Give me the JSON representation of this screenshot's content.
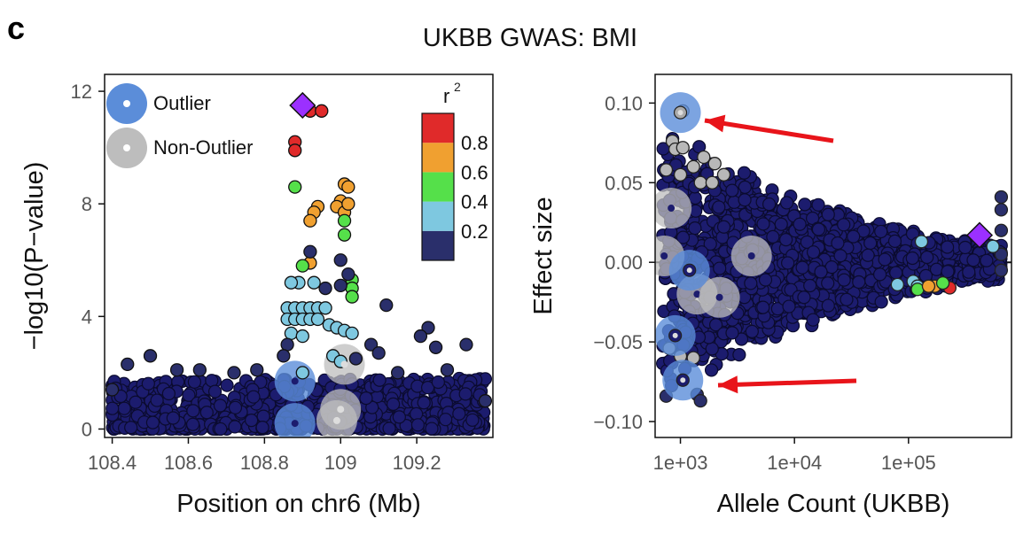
{
  "panel_letter": "c",
  "title": "UKBB GWAS: BMI",
  "colors": {
    "dark_navy": "#1c1c6e",
    "outlier_blue": "#5b8dd9",
    "non_outlier_gray": "#bdbdbd",
    "lead_snp_purple": "#9b30ff",
    "arrow_red": "#e8141a",
    "r2_bins": [
      "#2a2f6b",
      "#7ec8e0",
      "#55e04a",
      "#f0a030",
      "#e02a2a"
    ]
  },
  "legend": {
    "outlier_label": "Outlier",
    "non_outlier_label": "Non-Outlier",
    "r2_title": "r",
    "r2_title_superscript": "2",
    "r2_ticks": [
      "0.2",
      "0.4",
      "0.6",
      "0.8"
    ]
  },
  "chart_data": [
    {
      "type": "scatter",
      "name": "locus-plot",
      "xlabel": "Position on chr6 (Mb)",
      "ylabel": "−log10(P−value)",
      "xlim": [
        108.38,
        109.4
      ],
      "ylim": [
        -0.3,
        12.6
      ],
      "xticks": [
        108.4,
        108.6,
        108.8,
        109,
        109.2
      ],
      "xtick_labels": [
        "108.4",
        "108.6",
        "108.8",
        "109",
        "109.2"
      ],
      "yticks": [
        0,
        4,
        8,
        12
      ],
      "ytick_labels": [
        "0",
        "4",
        "8",
        "12"
      ],
      "lead_snp": {
        "x": 108.9,
        "y": 11.5,
        "r2_bin": 4
      },
      "points": [
        {
          "x": 108.92,
          "y": 11.3,
          "r2_bin": 4
        },
        {
          "x": 108.95,
          "y": 11.3,
          "r2_bin": 4
        },
        {
          "x": 108.88,
          "y": 10.2,
          "r2_bin": 4
        },
        {
          "x": 108.88,
          "y": 9.9,
          "r2_bin": 4
        },
        {
          "x": 109.01,
          "y": 8.7,
          "r2_bin": 3
        },
        {
          "x": 109.02,
          "y": 8.6,
          "r2_bin": 3
        },
        {
          "x": 109.0,
          "y": 8.1,
          "r2_bin": 3
        },
        {
          "x": 108.99,
          "y": 7.9,
          "r2_bin": 3
        },
        {
          "x": 109.01,
          "y": 7.7,
          "r2_bin": 3
        },
        {
          "x": 108.94,
          "y": 7.9,
          "r2_bin": 3
        },
        {
          "x": 108.93,
          "y": 7.7,
          "r2_bin": 3
        },
        {
          "x": 108.92,
          "y": 7.4,
          "r2_bin": 3
        },
        {
          "x": 109.02,
          "y": 8.0,
          "r2_bin": 3
        },
        {
          "x": 108.88,
          "y": 8.6,
          "r2_bin": 2
        },
        {
          "x": 109.01,
          "y": 7.4,
          "r2_bin": 2
        },
        {
          "x": 109.01,
          "y": 6.9,
          "r2_bin": 2
        },
        {
          "x": 108.92,
          "y": 5.9,
          "r2_bin": 3
        },
        {
          "x": 108.9,
          "y": 5.8,
          "r2_bin": 2
        },
        {
          "x": 109.03,
          "y": 5.3,
          "r2_bin": 2
        },
        {
          "x": 109.03,
          "y": 5.0,
          "r2_bin": 2
        },
        {
          "x": 109.03,
          "y": 4.7,
          "r2_bin": 2
        },
        {
          "x": 109.0,
          "y": 6.0,
          "r2_bin": 0
        },
        {
          "x": 108.92,
          "y": 6.3,
          "r2_bin": 0
        },
        {
          "x": 109.0,
          "y": 5.1,
          "r2_bin": 0
        },
        {
          "x": 109.02,
          "y": 5.5,
          "r2_bin": 0
        },
        {
          "x": 108.96,
          "y": 5.0,
          "r2_bin": 0
        },
        {
          "x": 108.89,
          "y": 5.2,
          "r2_bin": 1
        },
        {
          "x": 108.93,
          "y": 5.2,
          "r2_bin": 1
        },
        {
          "x": 108.87,
          "y": 5.2,
          "r2_bin": 1
        },
        {
          "x": 108.86,
          "y": 4.3,
          "r2_bin": 1
        },
        {
          "x": 108.88,
          "y": 4.3,
          "r2_bin": 1
        },
        {
          "x": 108.9,
          "y": 4.3,
          "r2_bin": 1
        },
        {
          "x": 108.92,
          "y": 4.3,
          "r2_bin": 1
        },
        {
          "x": 108.94,
          "y": 4.3,
          "r2_bin": 1
        },
        {
          "x": 108.96,
          "y": 4.3,
          "r2_bin": 1
        },
        {
          "x": 108.86,
          "y": 3.9,
          "r2_bin": 1
        },
        {
          "x": 108.88,
          "y": 3.9,
          "r2_bin": 1
        },
        {
          "x": 108.9,
          "y": 3.9,
          "r2_bin": 1
        },
        {
          "x": 108.92,
          "y": 3.9,
          "r2_bin": 1
        },
        {
          "x": 108.94,
          "y": 3.9,
          "r2_bin": 1
        },
        {
          "x": 108.97,
          "y": 3.7,
          "r2_bin": 1
        },
        {
          "x": 108.99,
          "y": 3.6,
          "r2_bin": 1
        },
        {
          "x": 109.01,
          "y": 3.5,
          "r2_bin": 1
        },
        {
          "x": 109.03,
          "y": 3.4,
          "r2_bin": 1
        },
        {
          "x": 108.87,
          "y": 3.4,
          "r2_bin": 1
        },
        {
          "x": 108.9,
          "y": 3.3,
          "r2_bin": 1
        },
        {
          "x": 108.98,
          "y": 2.6,
          "r2_bin": 1
        },
        {
          "x": 109.0,
          "y": 2.4,
          "r2_bin": 1
        },
        {
          "x": 108.9,
          "y": 2.0,
          "r2_bin": 1
        },
        {
          "x": 109.12,
          "y": 4.4,
          "r2_bin": 0
        },
        {
          "x": 109.23,
          "y": 3.6,
          "r2_bin": 0
        },
        {
          "x": 109.25,
          "y": 2.9,
          "r2_bin": 0
        },
        {
          "x": 109.33,
          "y": 3.0,
          "r2_bin": 0
        },
        {
          "x": 109.21,
          "y": 3.3,
          "r2_bin": 0
        },
        {
          "x": 109.08,
          "y": 3.0,
          "r2_bin": 0
        },
        {
          "x": 109.1,
          "y": 2.7,
          "r2_bin": 0
        },
        {
          "x": 108.5,
          "y": 2.6,
          "r2_bin": 0
        },
        {
          "x": 108.44,
          "y": 2.3,
          "r2_bin": 0
        },
        {
          "x": 108.57,
          "y": 2.1,
          "r2_bin": 0
        },
        {
          "x": 108.63,
          "y": 2.1,
          "r2_bin": 0
        },
        {
          "x": 108.72,
          "y": 2.0,
          "r2_bin": 0
        },
        {
          "x": 108.78,
          "y": 2.1,
          "r2_bin": 0
        },
        {
          "x": 109.15,
          "y": 2.0,
          "r2_bin": 0
        },
        {
          "x": 109.28,
          "y": 2.1,
          "r2_bin": 0
        },
        {
          "x": 108.4,
          "y": 1.4,
          "r2_bin": 0
        },
        {
          "x": 109.38,
          "y": 1.0,
          "r2_bin": 0
        },
        {
          "x": 108.86,
          "y": 3.0,
          "r2_bin": 0
        },
        {
          "x": 108.85,
          "y": 2.6,
          "r2_bin": 0
        },
        {
          "x": 109.04,
          "y": 2.5,
          "r2_bin": 0
        }
      ],
      "background_band": {
        "x_from": 108.4,
        "x_to": 109.38,
        "y_max": 1.8
      },
      "outliers": [
        {
          "x": 108.88,
          "y": 1.7
        },
        {
          "x": 108.88,
          "y": 0.2
        }
      ],
      "non_outliers": [
        {
          "x": 109.01,
          "y": 2.3
        },
        {
          "x": 109.0,
          "y": 0.7
        },
        {
          "x": 108.99,
          "y": 0.3
        }
      ]
    },
    {
      "type": "scatter",
      "name": "effect-size-plot",
      "xlabel": "Allele Count (UKBB)",
      "ylabel": "Effect size",
      "x_scale": "log10",
      "xlim": [
        600,
        800000
      ],
      "ylim": [
        -0.11,
        0.118
      ],
      "xticks": [
        1000,
        10000,
        100000
      ],
      "xtick_labels": [
        "1e+03",
        "1e+04",
        "1e+05"
      ],
      "yticks": [
        0.1,
        0.05,
        0.0,
        -0.05,
        -0.1
      ],
      "ytick_labels": [
        "0.10",
        "0.05",
        "0.00",
        "−0.05",
        "−0.10"
      ],
      "zero_line": true,
      "lead_snp": {
        "x": 420000,
        "y": 0.017
      },
      "points": [
        {
          "x": 1050,
          "y": 0.095,
          "r2_bin": -1
        },
        {
          "x": 850,
          "y": 0.076,
          "r2_bin": -1
        },
        {
          "x": 900,
          "y": 0.071,
          "r2_bin": -1
        },
        {
          "x": 1050,
          "y": 0.072,
          "r2_bin": -1
        },
        {
          "x": 1600,
          "y": 0.066,
          "r2_bin": -1
        },
        {
          "x": 2000,
          "y": 0.062,
          "r2_bin": -1
        },
        {
          "x": 750,
          "y": 0.058,
          "r2_bin": -1
        },
        {
          "x": 1300,
          "y": 0.06,
          "r2_bin": -1
        },
        {
          "x": 2400,
          "y": 0.055,
          "r2_bin": -1
        },
        {
          "x": 1000,
          "y": 0.055,
          "r2_bin": -1
        },
        {
          "x": 1500,
          "y": 0.05,
          "r2_bin": -1
        },
        {
          "x": 1900,
          "y": 0.05,
          "r2_bin": -1
        },
        {
          "x": 800,
          "y": -0.054,
          "r2_bin": -1
        },
        {
          "x": 1000,
          "y": -0.059,
          "r2_bin": -1
        },
        {
          "x": 1300,
          "y": -0.06,
          "r2_bin": -1
        },
        {
          "x": 750,
          "y": -0.084,
          "r2_bin": 0
        },
        {
          "x": 1400,
          "y": -0.083,
          "r2_bin": 0
        },
        {
          "x": 1500,
          "y": -0.087,
          "r2_bin": 0
        },
        {
          "x": 650000,
          "y": 0.041,
          "r2_bin": 0
        },
        {
          "x": 650000,
          "y": 0.033,
          "r2_bin": 0
        },
        {
          "x": 650000,
          "y": 0.02,
          "r2_bin": 0
        },
        {
          "x": 650000,
          "y": 0.005,
          "r2_bin": 0
        },
        {
          "x": 650000,
          "y": -0.005,
          "r2_bin": 0
        },
        {
          "x": 130000,
          "y": 0.013,
          "r2_bin": 1
        },
        {
          "x": 550000,
          "y": 0.01,
          "r2_bin": 1
        },
        {
          "x": 80000,
          "y": -0.014,
          "r2_bin": 1
        },
        {
          "x": 110000,
          "y": -0.012,
          "r2_bin": 1
        },
        {
          "x": 120000,
          "y": -0.015,
          "r2_bin": 1
        },
        {
          "x": 120000,
          "y": -0.017,
          "r2_bin": 2
        },
        {
          "x": 170000,
          "y": -0.015,
          "r2_bin": 3
        },
        {
          "x": 150000,
          "y": -0.015,
          "r2_bin": 3
        },
        {
          "x": 230000,
          "y": -0.016,
          "r2_bin": 4
        },
        {
          "x": 200000,
          "y": -0.013,
          "r2_bin": 2
        }
      ],
      "outliers": [
        {
          "x": 1000,
          "y": 0.094
        },
        {
          "x": 1200,
          "y": -0.005
        },
        {
          "x": 900,
          "y": -0.046
        },
        {
          "x": 1050,
          "y": -0.074
        }
      ],
      "non_outliers": [
        {
          "x": 830,
          "y": 0.034
        },
        {
          "x": 720,
          "y": 0.004
        },
        {
          "x": 1400,
          "y": -0.02
        },
        {
          "x": 2200,
          "y": -0.022
        },
        {
          "x": 4200,
          "y": 0.004
        }
      ]
    }
  ]
}
